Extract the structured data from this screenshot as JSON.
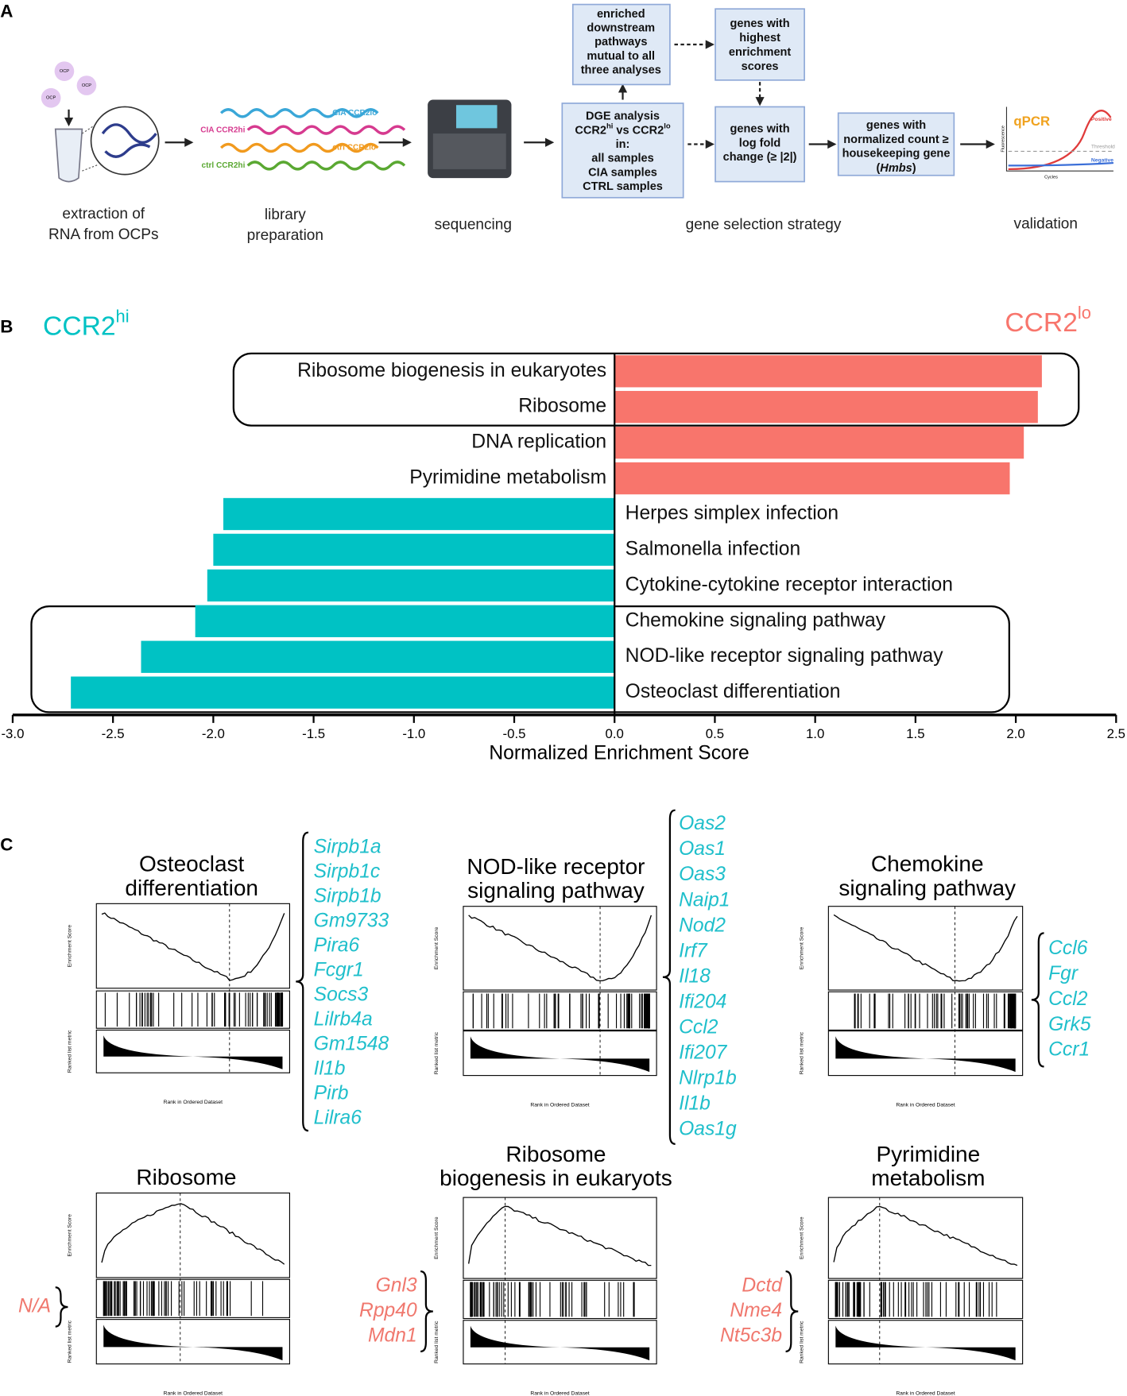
{
  "panel_labels": {
    "a": "A",
    "b": "B",
    "c": "C"
  },
  "workflow": {
    "ocp_label": "OCP",
    "library_labels": [
      "CIA CCR2lo",
      "CIA CCR2hi",
      "ctrl CCR2lo",
      "ctrl CCR2hi"
    ],
    "steps": [
      {
        "lines": [
          "extraction of",
          "RNA from OCPs"
        ]
      },
      {
        "lines": [
          "library",
          "preparation"
        ]
      },
      {
        "lines": [
          "sequencing"
        ]
      },
      {
        "lines": [
          "gene selection strategy"
        ]
      },
      {
        "lines": [
          "validation"
        ]
      }
    ],
    "boxes": [
      {
        "lines": [
          "enriched",
          "downstream",
          "pathways",
          "mutual to all",
          "three analyses"
        ]
      },
      {
        "lines": [
          "genes with",
          "highest",
          "enrichment",
          "scores"
        ]
      },
      {
        "lines": [
          "DGE analysis",
          [
            "CCR2",
            {
              "sup": "hi"
            },
            " vs CCR2",
            {
              "sup": "lo"
            }
          ],
          "in:",
          "all samples",
          "CIA samples",
          "CTRL samples"
        ]
      },
      {
        "lines": [
          "genes with",
          "log fold",
          "change (≥ |2|)"
        ]
      },
      {
        "lines": [
          "genes with",
          "normalized count ≥",
          "housekeeping gene",
          [
            "(",
            {
              "i": "Hmbs"
            },
            ")"
          ]
        ]
      }
    ],
    "qpcr": {
      "title": "qPCR",
      "positive": "Positive",
      "threshold": "Threshold",
      "negative": "Negative",
      "y_label": "Fluorescence",
      "x_label": "Cycles"
    }
  },
  "chart_data": {
    "type": "bar",
    "orientation": "horizontal",
    "left_label": [
      "CCR2",
      {
        "sup": "hi"
      }
    ],
    "right_label": [
      "CCR2",
      {
        "sup": "lo"
      }
    ],
    "xlabel": "Normalized Enrichment Score",
    "categories": [
      "Ribosome biogenesis in eukaryotes",
      "Ribosome",
      "DNA replication",
      "Pyrimidine metabolism",
      "Herpes simplex infection",
      "Salmonella infection",
      "Cytokine-cytokine receptor interaction",
      "Chemokine signaling pathway",
      "NOD-like receptor signaling pathway",
      "Osteoclast differentiation"
    ],
    "values": [
      2.13,
      2.11,
      2.04,
      1.97,
      -1.95,
      -2.0,
      -2.03,
      -2.09,
      -2.36,
      -2.71
    ],
    "color_positive": "#f8756c",
    "color_negative": "#00c2c4",
    "xlim": [
      -3.0,
      2.5
    ],
    "xticks": [
      {
        "value": -3,
        "label": "-3.0"
      },
      -2.5,
      {
        "value": -2,
        "label": "-2.0"
      },
      -1.5,
      {
        "value": -1,
        "label": "-1.0"
      },
      -0.5,
      {
        "value": 0,
        "label": "0.0"
      },
      0.5,
      {
        "value": 1,
        "label": "1.0"
      },
      1.5,
      {
        "value": 2,
        "label": "2.0"
      },
      2.5
    ]
  },
  "gsea": {
    "es_label": "Enrichment Score",
    "metric_label": "Ranked list metric",
    "x_label": "Rank in Ordered Dataset",
    "plots": [
      {
        "title": [
          "Osteoclast",
          "differentiation"
        ],
        "color": "#1fbfcb",
        "genes": [
          "Sirpb1a",
          "Sirpb1c",
          "Sirpb1b",
          "Gm9733",
          "Pira6",
          "Fcgr1",
          "Socs3",
          "Lilrb4a",
          "Gm1548",
          "Il1b",
          "Pirb",
          "Lilra6"
        ]
      },
      {
        "title": [
          "NOD-like receptor",
          "signaling pathway"
        ],
        "color": "#1fbfcb",
        "genes": [
          "Oas2",
          "Oas1",
          "Oas3",
          "Naip1",
          "Nod2",
          "Irf7",
          "Il18",
          "Ifi204",
          "Ccl2",
          "Ifi207",
          "Nlrp1b",
          "Il1b",
          "Oas1g"
        ]
      },
      {
        "title": [
          "Chemokine",
          "signaling pathway"
        ],
        "color": "#1fbfcb",
        "genes": [
          "Ccl6",
          "Fgr",
          "Ccl2",
          "Grk5",
          "Ccr1"
        ]
      },
      {
        "title": [
          "Ribosome"
        ],
        "color": "#f0786e",
        "genes": [
          "N/A"
        ]
      },
      {
        "title": [
          "Ribosome",
          "biogenesis in eukaryots"
        ],
        "color": "#f0786e",
        "genes": [
          "Gnl3",
          "Rpp40",
          "Mdn1"
        ]
      },
      {
        "title": [
          "Pyrimidine",
          "metabolism"
        ],
        "color": "#f0786e",
        "genes": [
          "Dctd",
          "Nme4",
          "Nt5c3b"
        ]
      }
    ]
  }
}
